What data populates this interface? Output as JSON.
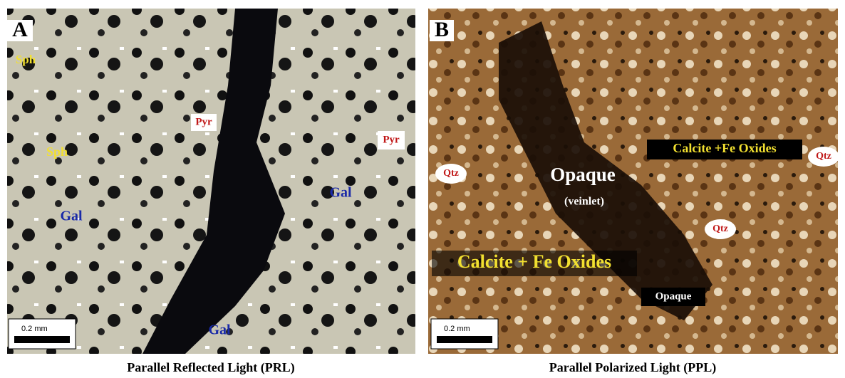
{
  "panels": [
    {
      "label": "A",
      "caption": "Parallel Reflected Light (PRL)",
      "scale_bar": "0.2 mm",
      "annotations": [
        "Sph",
        "Sph",
        "Pyr",
        "Pyr",
        "Gal",
        "Gal",
        "Gal"
      ]
    },
    {
      "label": "B",
      "caption": "Parallel Polarized Light (PPL)",
      "scale_bar": "0.2 mm",
      "annotations": [
        "Qtz",
        "Opaque",
        "(veinlet)",
        "Calcite +Fe Oxides",
        "Qtz",
        "Qtz",
        "Calcite + Fe Oxides",
        "Opaque"
      ]
    }
  ]
}
